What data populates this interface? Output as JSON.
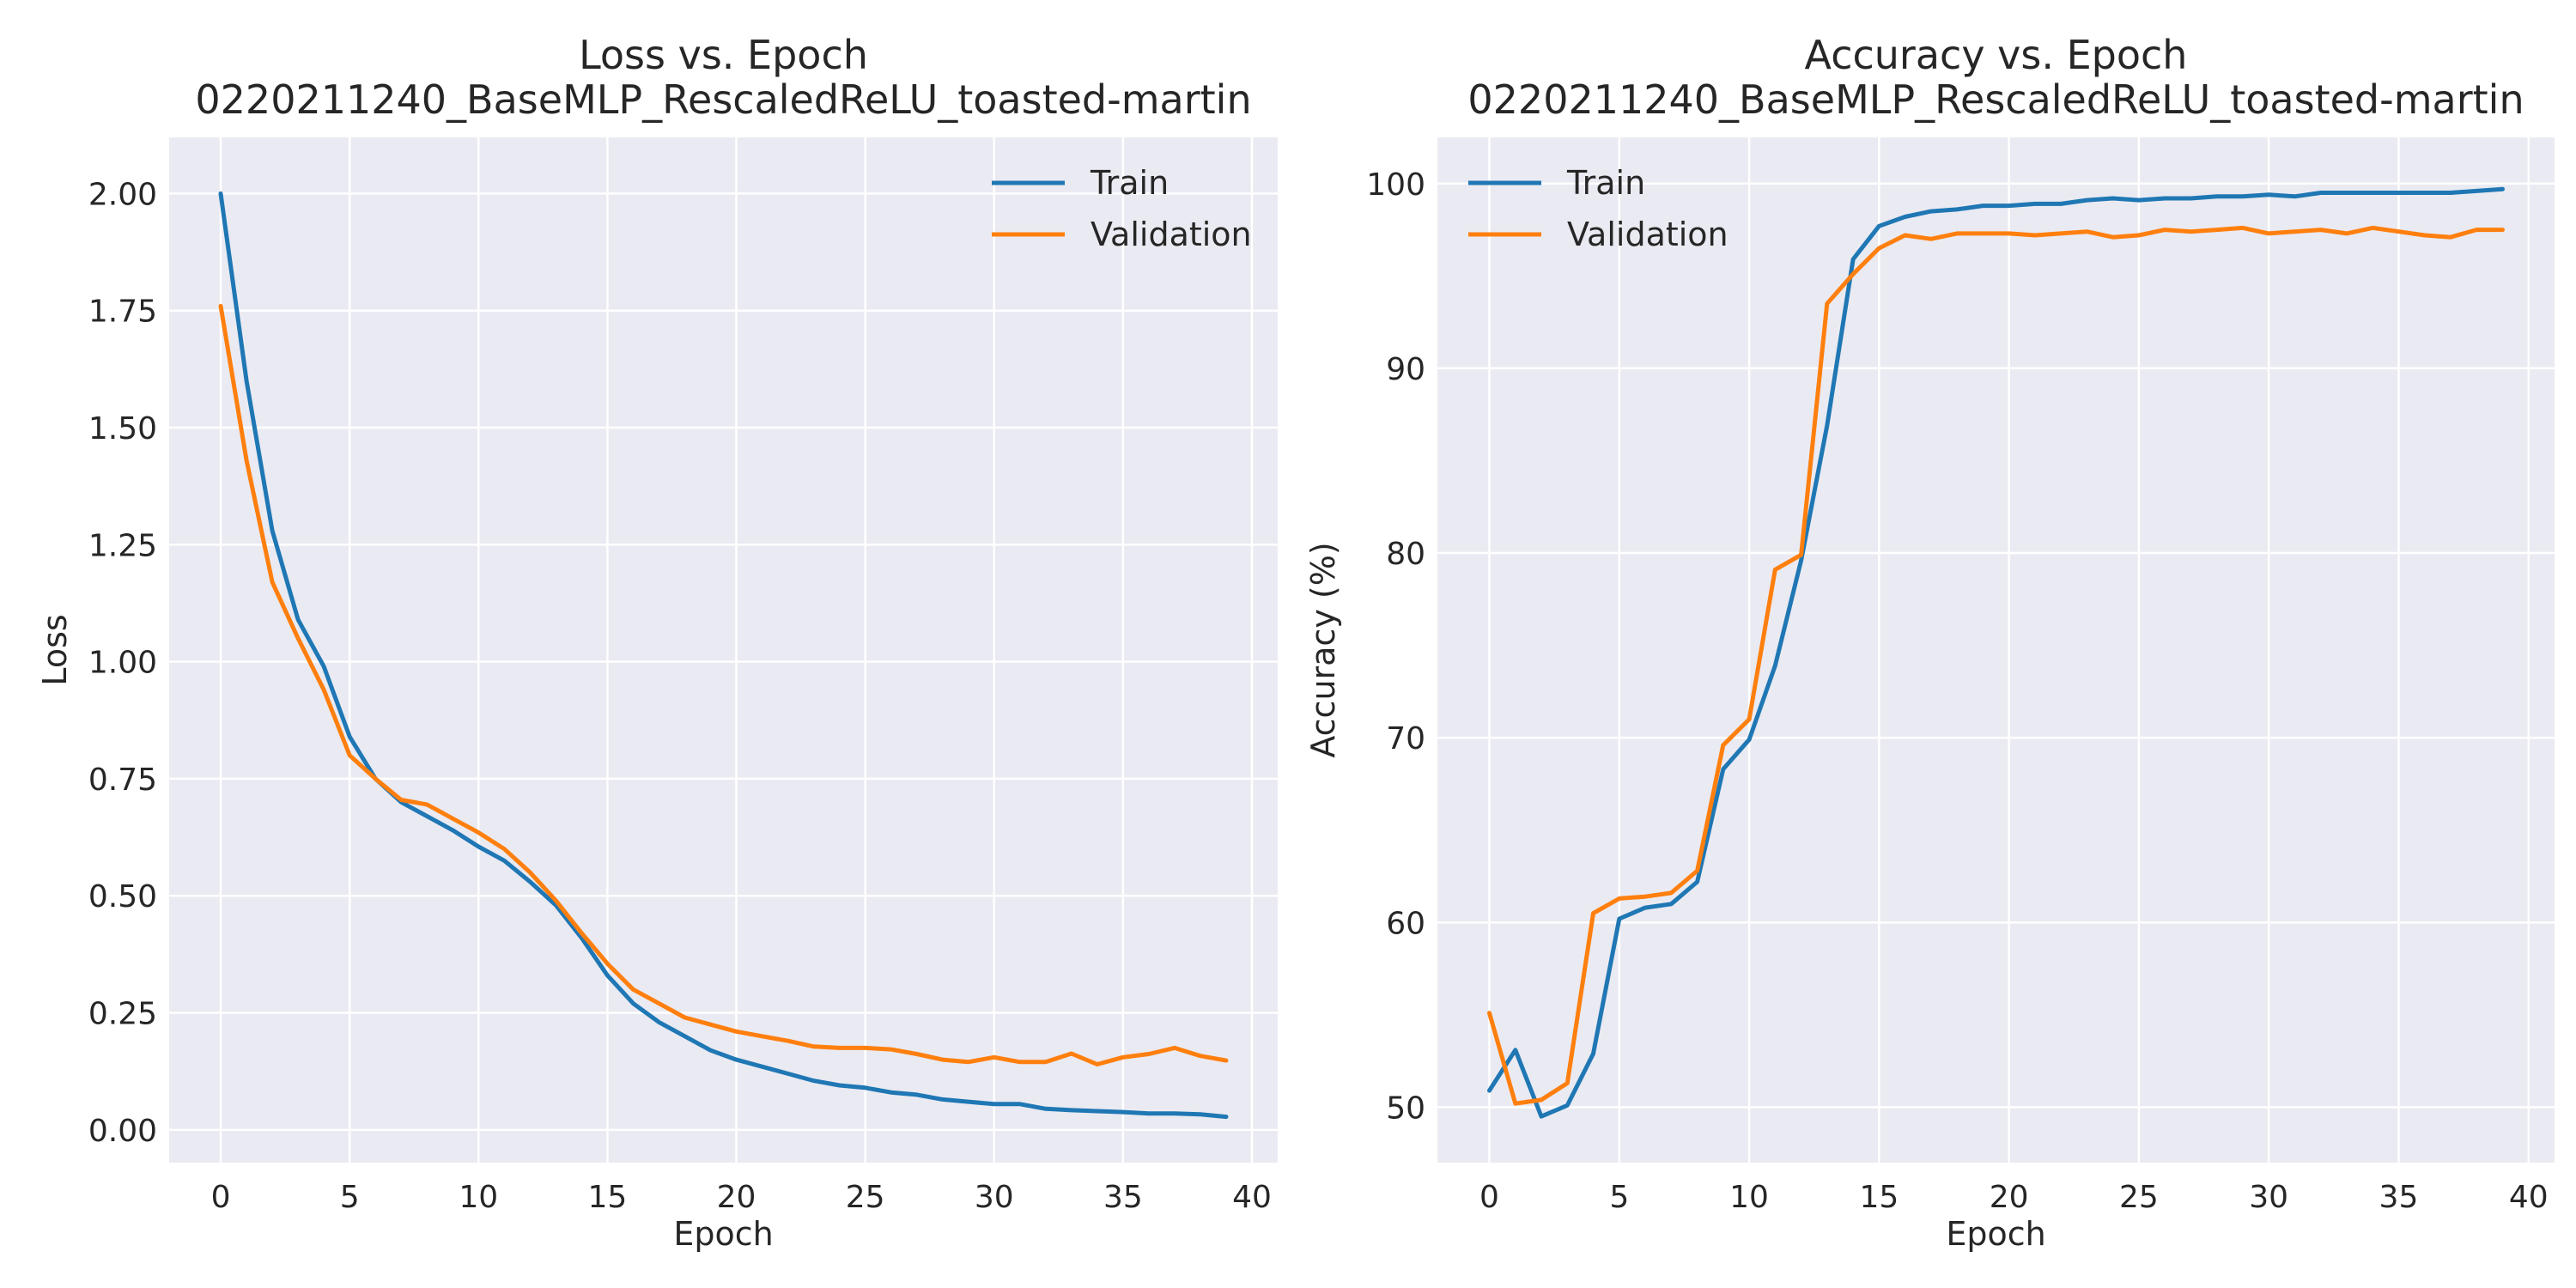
{
  "colors": {
    "train": "#1f77b4",
    "validation": "#ff7f0e",
    "background": "#eaeaf2",
    "grid": "#ffffff"
  },
  "chart_data": [
    {
      "type": "line",
      "title": "Loss vs. Epoch",
      "subtitle": "0220211240_BaseMLP_RescaledReLU_toasted-martin",
      "xlabel": "Epoch",
      "ylabel": "Loss",
      "xlim": [
        -2,
        41
      ],
      "ylim": [
        -0.07,
        2.12
      ],
      "xticks": [
        0,
        5,
        10,
        15,
        20,
        25,
        30,
        35,
        40
      ],
      "yticks": [
        0.0,
        0.25,
        0.5,
        0.75,
        1.0,
        1.25,
        1.5,
        1.75,
        2.0
      ],
      "ytick_labels": [
        "0.00",
        "0.25",
        "0.50",
        "0.75",
        "1.00",
        "1.25",
        "1.50",
        "1.75",
        "2.00"
      ],
      "grid": true,
      "legend_position": "top-right",
      "x": [
        0,
        1,
        2,
        3,
        4,
        5,
        6,
        7,
        8,
        9,
        10,
        11,
        12,
        13,
        14,
        15,
        16,
        17,
        18,
        19,
        20,
        21,
        22,
        23,
        24,
        25,
        26,
        27,
        28,
        29,
        30,
        31,
        32,
        33,
        34,
        35,
        36,
        37,
        38,
        39
      ],
      "series": [
        {
          "name": "Train",
          "values": [
            2.0,
            1.6,
            1.28,
            1.09,
            0.99,
            0.84,
            0.75,
            0.7,
            0.67,
            0.64,
            0.605,
            0.575,
            0.53,
            0.48,
            0.41,
            0.33,
            0.27,
            0.23,
            0.2,
            0.17,
            0.15,
            0.135,
            0.12,
            0.105,
            0.095,
            0.09,
            0.08,
            0.075,
            0.065,
            0.06,
            0.055,
            0.055,
            0.045,
            0.042,
            0.04,
            0.038,
            0.035,
            0.035,
            0.033,
            0.028
          ]
        },
        {
          "name": "Validation",
          "values": [
            1.76,
            1.43,
            1.17,
            1.05,
            0.94,
            0.8,
            0.75,
            0.705,
            0.695,
            0.665,
            0.635,
            0.6,
            0.55,
            0.49,
            0.42,
            0.355,
            0.3,
            0.27,
            0.24,
            0.225,
            0.21,
            0.2,
            0.19,
            0.178,
            0.175,
            0.175,
            0.172,
            0.162,
            0.15,
            0.145,
            0.155,
            0.145,
            0.145,
            0.163,
            0.14,
            0.155,
            0.162,
            0.175,
            0.158,
            0.148
          ]
        }
      ]
    },
    {
      "type": "line",
      "title": "Accuracy vs. Epoch",
      "subtitle": "0220211240_BaseMLP_RescaledReLU_toasted-martin",
      "xlabel": "Epoch",
      "ylabel": "Accuracy (%)",
      "xlim": [
        -2,
        41
      ],
      "ylim": [
        47,
        102.5
      ],
      "xticks": [
        0,
        5,
        10,
        15,
        20,
        25,
        30,
        35,
        40
      ],
      "yticks": [
        50,
        60,
        70,
        80,
        90,
        100
      ],
      "ytick_labels": [
        "50",
        "60",
        "70",
        "80",
        "90",
        "100"
      ],
      "grid": true,
      "legend_position": "top-left",
      "x": [
        0,
        1,
        2,
        3,
        4,
        5,
        6,
        7,
        8,
        9,
        10,
        11,
        12,
        13,
        14,
        15,
        16,
        17,
        18,
        19,
        20,
        21,
        22,
        23,
        24,
        25,
        26,
        27,
        28,
        29,
        30,
        31,
        32,
        33,
        34,
        35,
        36,
        37,
        38,
        39
      ],
      "series": [
        {
          "name": "Train",
          "values": [
            50.9,
            53.1,
            49.5,
            50.1,
            52.9,
            60.2,
            60.8,
            61.0,
            62.2,
            68.3,
            69.9,
            73.9,
            79.6,
            86.9,
            95.9,
            97.7,
            98.2,
            98.5,
            98.6,
            98.8,
            98.8,
            98.9,
            98.9,
            99.1,
            99.2,
            99.1,
            99.2,
            99.2,
            99.3,
            99.3,
            99.4,
            99.3,
            99.5,
            99.5,
            99.5,
            99.5,
            99.5,
            99.5,
            99.6,
            99.7
          ]
        },
        {
          "name": "Validation",
          "values": [
            55.1,
            50.2,
            50.4,
            51.3,
            60.5,
            61.3,
            61.4,
            61.6,
            62.8,
            69.6,
            71.0,
            79.1,
            79.9,
            93.5,
            95.1,
            96.5,
            97.2,
            97.0,
            97.3,
            97.3,
            97.3,
            97.2,
            97.3,
            97.4,
            97.1,
            97.2,
            97.5,
            97.4,
            97.5,
            97.6,
            97.3,
            97.4,
            97.5,
            97.3,
            97.6,
            97.4,
            97.2,
            97.1,
            97.5,
            97.5
          ]
        }
      ]
    }
  ]
}
